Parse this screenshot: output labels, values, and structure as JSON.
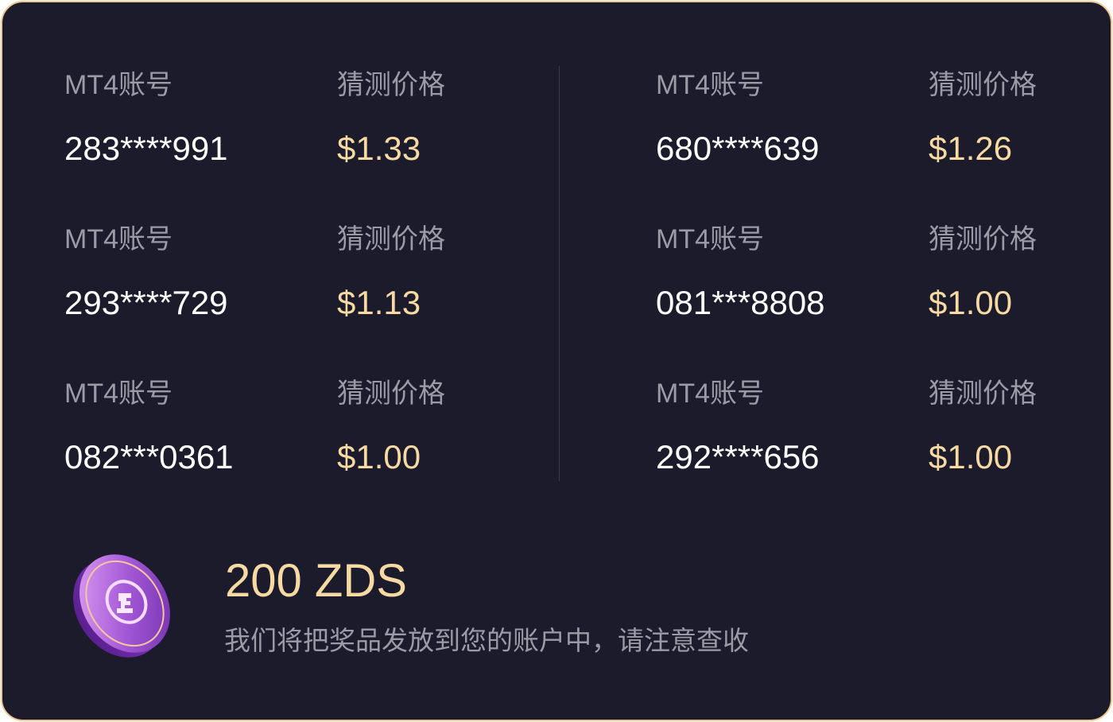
{
  "entries": [
    {
      "account_label": "MT4账号",
      "account": "283****991",
      "price_label": "猜测价格",
      "price": "$1.33"
    },
    {
      "account_label": "MT4账号",
      "account": "293****729",
      "price_label": "猜测价格",
      "price": "$1.13"
    },
    {
      "account_label": "MT4账号",
      "account": "082***0361",
      "price_label": "猜测价格",
      "price": "$1.00"
    },
    {
      "account_label": "MT4账号",
      "account": "680****639",
      "price_label": "猜测价格",
      "price": "$1.26"
    },
    {
      "account_label": "MT4账号",
      "account": "081***8808",
      "price_label": "猜测价格",
      "price": "$1.00"
    },
    {
      "account_label": "MT4账号",
      "account": "292****656",
      "price_label": "猜测价格",
      "price": "$1.00"
    }
  ],
  "reward": {
    "amount": "200 ZDS",
    "notice": "我们将把奖品发放到您的账户中，请注意查收",
    "icon": "zds-coin-icon"
  },
  "colors": {
    "background": "#1c1b2b",
    "border": "#f2c58f",
    "gold": "#f6d9a3",
    "label": "#9b9aa7"
  }
}
